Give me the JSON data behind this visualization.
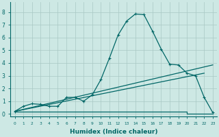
{
  "xlabel": "Humidex (Indice chaleur)",
  "xlim": [
    -0.5,
    23.5
  ],
  "ylim": [
    -0.2,
    8.8
  ],
  "xticks": [
    0,
    1,
    2,
    3,
    4,
    5,
    6,
    7,
    8,
    9,
    10,
    11,
    12,
    13,
    14,
    15,
    16,
    17,
    18,
    19,
    20,
    21,
    22,
    23
  ],
  "yticks": [
    0,
    1,
    2,
    3,
    4,
    5,
    6,
    7,
    8
  ],
  "bg_color": "#cde8e4",
  "grid_color": "#a8c8c4",
  "line_color": "#006666",
  "line1_x": [
    0,
    1,
    2,
    3,
    4,
    5,
    6,
    7,
    8,
    9,
    10,
    11,
    12,
    13,
    14,
    15,
    16,
    17,
    18,
    19,
    20,
    21,
    22,
    23
  ],
  "line1_y": [
    0.2,
    0.6,
    0.8,
    0.75,
    0.6,
    0.6,
    1.3,
    1.3,
    1.0,
    1.5,
    2.7,
    4.4,
    6.2,
    7.3,
    7.85,
    7.8,
    6.5,
    5.1,
    3.9,
    3.85,
    3.2,
    3.0,
    1.3,
    0.1
  ],
  "line2_x": [
    0,
    1,
    2,
    3,
    4,
    5,
    6,
    7,
    8,
    9,
    10,
    11,
    12,
    13,
    14,
    15,
    16,
    17,
    18,
    19,
    20,
    21,
    22,
    23
  ],
  "line2_y": [
    0.2,
    0.2,
    0.2,
    0.2,
    0.2,
    0.2,
    0.2,
    0.2,
    0.2,
    0.2,
    0.2,
    0.2,
    0.2,
    0.2,
    0.2,
    0.2,
    0.2,
    0.2,
    0.2,
    0.2,
    0.0,
    0.0,
    0.0,
    0.0
  ],
  "line3_x": [
    0,
    23
  ],
  "line3_y": [
    0.2,
    3.85
  ],
  "line4_x": [
    0,
    22
  ],
  "line4_y": [
    0.2,
    3.2
  ]
}
